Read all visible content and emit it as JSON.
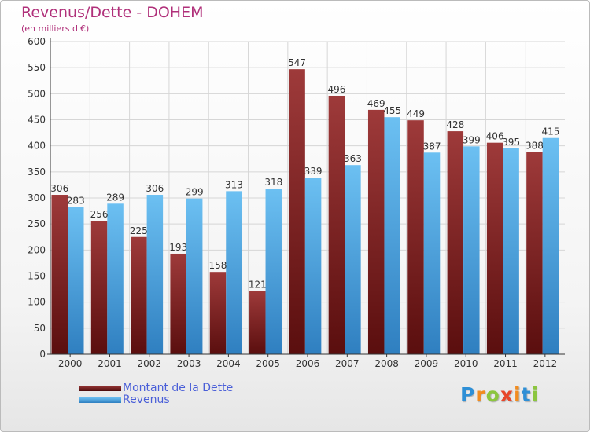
{
  "colors": {
    "debt": "#7a1c1c",
    "debt_light": "#9e3a3a",
    "revenue": "#4aa8e6",
    "revenue_light": "#6cc0f2",
    "grid": "#d6d6d6",
    "title": "#b0307a",
    "legend_text": "#4a5fd8"
  },
  "chart_data": {
    "type": "bar",
    "title": "Revenus/Dette - DOHEM",
    "subtitle": "(en milliers d'€)",
    "categories": [
      "2000",
      "2001",
      "2002",
      "2003",
      "2004",
      "2005",
      "2006",
      "2007",
      "2008",
      "2009",
      "2010",
      "2011",
      "2012"
    ],
    "series": [
      {
        "name": "Montant de la Dette",
        "values": [
          306,
          256,
          225,
          193,
          158,
          121,
          547,
          496,
          469,
          449,
          428,
          406,
          388
        ]
      },
      {
        "name": "Revenus",
        "values": [
          283,
          289,
          306,
          299,
          313,
          318,
          339,
          363,
          455,
          387,
          399,
          395,
          415
        ]
      }
    ],
    "ylim": [
      0,
      600
    ],
    "yticks": [
      0,
      50,
      100,
      150,
      200,
      250,
      300,
      350,
      400,
      450,
      500,
      550,
      600
    ],
    "grid": true,
    "legend_position": "bottom-left",
    "data_labels": true
  },
  "logo": {
    "letters": [
      "P",
      "r",
      "o",
      "x",
      "i",
      "t",
      "i"
    ],
    "colors": [
      "#2e8fd6",
      "#f28c1f",
      "#8cc63f",
      "#e8462a",
      "#f28c1f",
      "#2e8fd6",
      "#8cc63f"
    ]
  }
}
